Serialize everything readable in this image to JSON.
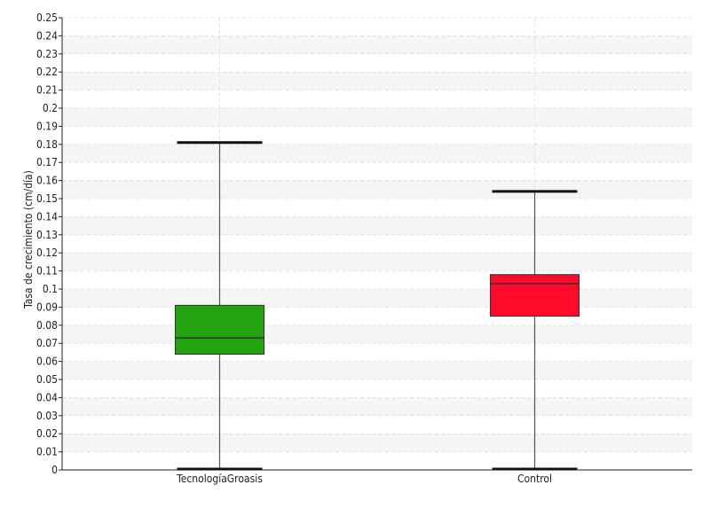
{
  "chart_data": {
    "type": "box",
    "title": "",
    "xlabel": "",
    "ylabel": "Tasa de crecimiento (cm/día)",
    "ylim": [
      0,
      0.25
    ],
    "y_ticks": [
      "0",
      "0.01",
      "0.02",
      "0.03",
      "0.04",
      "0.05",
      "0.06",
      "0.07",
      "0.08",
      "0.09",
      "0.1",
      "0.11",
      "0.12",
      "0.13",
      "0.14",
      "0.15",
      "0.16",
      "0.17",
      "0.18",
      "0.19",
      "0.2",
      "0.21",
      "0.22",
      "0.23",
      "0.24",
      "0.25"
    ],
    "grid": true,
    "categories": [
      "TecnologíaGroasis",
      "Control"
    ],
    "boxes": [
      {
        "category": "TecnologíaGroasis",
        "min": 0.0,
        "q1": 0.064,
        "median": 0.073,
        "q3": 0.091,
        "max": 0.181,
        "color": "#22a40f"
      },
      {
        "category": "Control",
        "min": 0.0,
        "q1": 0.085,
        "median": 0.103,
        "q3": 0.108,
        "max": 0.154,
        "color": "#ff0a2a"
      }
    ]
  }
}
